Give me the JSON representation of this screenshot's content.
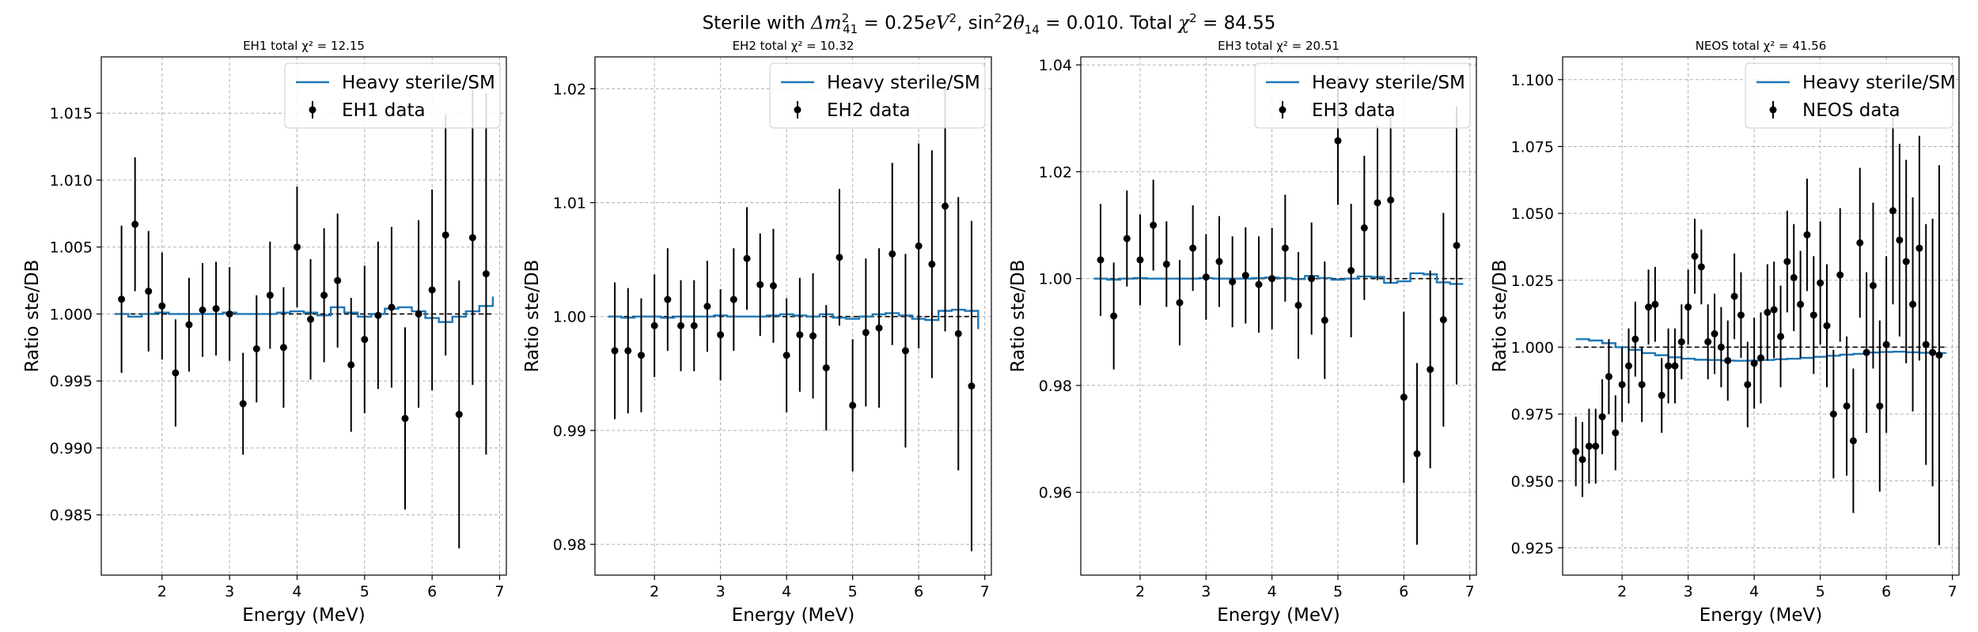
{
  "figure": {
    "suptitle": "Sterile with Δm²₄₁ = 0.25eV², sin²2θ₁₄ = 0.010. Total χ² = 84.55"
  },
  "colors": {
    "model": "#1f77b4",
    "data": "#000000",
    "reference": "#000000",
    "grid": "#b0b0b0"
  },
  "chart_data": [
    {
      "type": "scatter",
      "title": "EH1 total χ² = 12.15",
      "xlabel": "Energy (MeV)",
      "ylabel": "Ratio ste/DB",
      "xlim": [
        1.1,
        7.1
      ],
      "ylim": [
        0.9805,
        1.0192
      ],
      "xticks": [
        2,
        3,
        4,
        5,
        6,
        7
      ],
      "yticks": [
        0.985,
        0.99,
        0.995,
        1.0,
        1.005,
        1.01,
        1.015
      ],
      "ytick_labels": [
        "0.985",
        "0.990",
        "0.995",
        "1.000",
        "1.005",
        "1.010",
        "1.015"
      ],
      "grid": true,
      "reference_line": 1.0,
      "legend_position": "top-right",
      "series": [
        {
          "name": "Heavy sterile/SM",
          "kind": "step",
          "edges": [
            1.3,
            1.5,
            1.7,
            1.9,
            2.1,
            2.3,
            2.5,
            2.7,
            2.9,
            3.1,
            3.3,
            3.5,
            3.7,
            3.9,
            4.1,
            4.3,
            4.5,
            4.7,
            4.9,
            5.1,
            5.3,
            5.5,
            5.7,
            5.9,
            6.1,
            6.3,
            6.5,
            6.7,
            6.9
          ],
          "values": [
            1.0,
            0.9998,
            1.0,
            1.0001,
            1.0,
            1.0,
            1.0,
            1.0,
            1.0001,
            1.0,
            1.0,
            1.0,
            1.0001,
            1.0002,
            1.0001,
            0.9999,
            1.0005,
            1.0001,
            0.9998,
            1.0,
            1.0004,
            1.0005,
            1.0002,
            0.9997,
            0.9994,
            0.9998,
            1.0002,
            1.0006,
            1.0013
          ]
        },
        {
          "name": "EH1 data",
          "kind": "errorbar",
          "x": [
            1.4,
            1.6,
            1.8,
            2.0,
            2.2,
            2.4,
            2.6,
            2.8,
            3.0,
            3.2,
            3.4,
            3.6,
            3.8,
            4.0,
            4.2,
            4.4,
            4.6,
            4.8,
            5.0,
            5.2,
            5.4,
            5.6,
            5.8,
            6.0,
            6.2,
            6.4,
            6.6,
            6.8
          ],
          "y": [
            1.0011,
            1.0067,
            1.0017,
            1.0006,
            0.9956,
            0.9992,
            1.0003,
            1.0004,
            1.0,
            0.9933,
            0.9974,
            1.0014,
            0.9975,
            1.005,
            0.9996,
            1.0014,
            1.0025,
            0.9962,
            0.9981,
            0.9999,
            1.0005,
            0.9922,
            1.0,
            1.0018,
            1.0059,
            0.9925,
            1.0057,
            1.003
          ],
          "yerr": [
            0.0055,
            0.005,
            0.0045,
            0.004,
            0.004,
            0.0035,
            0.0035,
            0.0035,
            0.0035,
            0.0038,
            0.004,
            0.004,
            0.0045,
            0.0045,
            0.0045,
            0.005,
            0.005,
            0.005,
            0.0055,
            0.0055,
            0.006,
            0.0068,
            0.007,
            0.0075,
            0.009,
            0.01,
            0.011,
            0.0135
          ]
        }
      ]
    },
    {
      "type": "scatter",
      "title": "EH2 total χ² = 10.32",
      "xlabel": "Energy (MeV)",
      "ylabel": "Ratio ste/DB",
      "xlim": [
        1.1,
        7.1
      ],
      "ylim": [
        0.9773,
        1.0228
      ],
      "xticks": [
        2,
        3,
        4,
        5,
        6,
        7
      ],
      "yticks": [
        0.98,
        0.99,
        1.0,
        1.01,
        1.02
      ],
      "ytick_labels": [
        "0.98",
        "0.99",
        "1.00",
        "1.01",
        "1.02"
      ],
      "grid": true,
      "reference_line": 1.0,
      "legend_position": "top-right",
      "series": [
        {
          "name": "Heavy sterile/SM",
          "kind": "step",
          "edges": [
            1.3,
            1.5,
            1.7,
            1.9,
            2.1,
            2.3,
            2.5,
            2.7,
            2.9,
            3.1,
            3.3,
            3.5,
            3.7,
            3.9,
            4.1,
            4.3,
            4.5,
            4.7,
            4.9,
            5.1,
            5.3,
            5.5,
            5.7,
            5.9,
            6.1,
            6.3,
            6.5,
            6.7,
            6.9
          ],
          "values": [
            1.0,
            0.9999,
            1.0,
            1.0,
            0.9999,
            1.0,
            1.0,
            1.0,
            1.0001,
            1.0,
            1.0,
            1.0,
            1.0001,
            1.0002,
            1.0001,
            1.0,
            1.0002,
            0.9999,
            0.9998,
            1.0,
            1.0002,
            1.0003,
            1.0001,
            0.9998,
            0.9997,
            1.0005,
            1.0006,
            1.0005,
            0.9989
          ]
        },
        {
          "name": "EH2 data",
          "kind": "errorbar",
          "x": [
            1.4,
            1.6,
            1.8,
            2.0,
            2.2,
            2.4,
            2.6,
            2.8,
            3.0,
            3.2,
            3.4,
            3.6,
            3.8,
            4.0,
            4.2,
            4.4,
            4.6,
            4.8,
            5.0,
            5.2,
            5.4,
            5.6,
            5.8,
            6.0,
            6.2,
            6.4,
            6.6,
            6.8
          ],
          "y": [
            0.997,
            0.997,
            0.9966,
            0.9992,
            1.0015,
            0.9992,
            0.9992,
            1.0009,
            0.9984,
            1.0015,
            1.0051,
            1.0028,
            1.0027,
            0.9966,
            0.9984,
            0.9983,
            0.9955,
            1.0052,
            0.9922,
            0.9986,
            0.999,
            1.0055,
            0.997,
            1.0062,
            1.0046,
            1.0097,
            0.9985,
            0.9939
          ],
          "yerr": [
            0.006,
            0.0055,
            0.005,
            0.0045,
            0.0045,
            0.004,
            0.004,
            0.004,
            0.004,
            0.0045,
            0.0045,
            0.0045,
            0.005,
            0.005,
            0.005,
            0.0055,
            0.0055,
            0.006,
            0.0058,
            0.0065,
            0.007,
            0.008,
            0.0085,
            0.009,
            0.01,
            0.011,
            0.012,
            0.0145
          ]
        }
      ]
    },
    {
      "type": "scatter",
      "title": "EH3 total χ² = 20.51",
      "xlabel": "Energy (MeV)",
      "ylabel": "Ratio ste/DB",
      "xlim": [
        1.1,
        7.1
      ],
      "ylim": [
        0.9445,
        1.0415
      ],
      "xticks": [
        2,
        3,
        4,
        5,
        6,
        7
      ],
      "yticks": [
        0.96,
        0.98,
        1.0,
        1.02,
        1.04
      ],
      "ytick_labels": [
        "0.96",
        "0.98",
        "1.00",
        "1.02",
        "1.04"
      ],
      "grid": true,
      "reference_line": 1.0,
      "legend_position": "top-right",
      "series": [
        {
          "name": "Heavy sterile/SM",
          "kind": "step",
          "edges": [
            1.3,
            1.5,
            1.7,
            1.9,
            2.1,
            2.3,
            2.5,
            2.7,
            2.9,
            3.1,
            3.3,
            3.5,
            3.7,
            3.9,
            4.1,
            4.3,
            4.5,
            4.7,
            4.9,
            5.1,
            5.3,
            5.5,
            5.7,
            5.9,
            6.1,
            6.3,
            6.5,
            6.7,
            6.9
          ],
          "values": [
            1.0,
            0.9998,
            1.0,
            1.0001,
            1.0,
            1.0,
            1.0,
            1.0,
            1.0001,
            1.0,
            1.0,
            1.0,
            1.0001,
            1.0002,
            1.0001,
            0.9999,
            1.0005,
            1.0001,
            0.9998,
            1.0,
            1.0004,
            1.0003,
            0.9992,
            0.9995,
            1.001,
            1.0008,
            0.9993,
            0.999,
            0.999
          ]
        },
        {
          "name": "EH3 data",
          "kind": "errorbar",
          "x": [
            1.4,
            1.6,
            1.8,
            2.0,
            2.2,
            2.4,
            2.6,
            2.8,
            3.0,
            3.2,
            3.4,
            3.6,
            3.8,
            4.0,
            4.2,
            4.4,
            4.6,
            4.8,
            5.0,
            5.2,
            5.4,
            5.6,
            5.8,
            6.0,
            6.2,
            6.4,
            6.6,
            6.8
          ],
          "y": [
            1.0035,
            0.993,
            1.0075,
            1.0035,
            1.01,
            1.0027,
            0.9955,
            1.0057,
            1.0003,
            1.0032,
            0.9994,
            1.0006,
            0.9989,
            1.0,
            1.0057,
            0.995,
            1.0,
            0.9922,
            1.0258,
            1.0015,
            1.0095,
            1.0142,
            1.0147,
            0.9778,
            0.9672,
            0.983,
            0.9923,
            1.0062
          ],
          "yerr": [
            0.0105,
            0.01,
            0.009,
            0.0085,
            0.0085,
            0.008,
            0.008,
            0.008,
            0.008,
            0.0085,
            0.0085,
            0.009,
            0.009,
            0.0095,
            0.01,
            0.01,
            0.0105,
            0.011,
            0.012,
            0.0125,
            0.0135,
            0.0145,
            0.0155,
            0.016,
            0.017,
            0.0185,
            0.02,
            0.026
          ]
        }
      ]
    },
    {
      "type": "scatter",
      "title": "NEOS total χ² = 41.56",
      "xlabel": "Energy (MeV)",
      "ylabel": "Ratio ste/DB",
      "xlim": [
        1.1,
        7.1
      ],
      "ylim": [
        0.9148,
        1.1085
      ],
      "xticks": [
        2,
        3,
        4,
        5,
        6,
        7
      ],
      "yticks": [
        0.925,
        0.95,
        0.975,
        1.0,
        1.025,
        1.05,
        1.075,
        1.1
      ],
      "ytick_labels": [
        "0.925",
        "0.950",
        "0.975",
        "1.000",
        "1.025",
        "1.050",
        "1.075",
        "1.100"
      ],
      "grid": true,
      "reference_line": 1.0,
      "legend_position": "top-right",
      "series": [
        {
          "name": "Heavy sterile/SM",
          "kind": "step",
          "edges": [
            1.3,
            1.5,
            1.7,
            1.9,
            2.1,
            2.3,
            2.5,
            2.7,
            2.9,
            3.1,
            3.3,
            3.5,
            3.7,
            3.9,
            4.1,
            4.3,
            4.5,
            4.7,
            4.9,
            5.1,
            5.3,
            5.5,
            5.7,
            5.9,
            6.1,
            6.3,
            6.5,
            6.7,
            6.9
          ],
          "values": [
            1.003,
            1.0025,
            1.0015,
            1.0,
            0.999,
            0.9978,
            0.997,
            0.9962,
            0.9957,
            0.9953,
            0.9952,
            0.995,
            0.9949,
            0.995,
            0.9952,
            0.9955,
            0.9957,
            0.996,
            0.9964,
            0.9968,
            0.9972,
            0.9975,
            0.998,
            0.9982,
            0.9983,
            0.9981,
            0.9979,
            0.9978,
            0.9977
          ]
        },
        {
          "name": "NEOS data",
          "kind": "errorbar",
          "x": [
            1.3,
            1.4,
            1.5,
            1.6,
            1.7,
            1.8,
            1.9,
            2.0,
            2.1,
            2.2,
            2.3,
            2.4,
            2.5,
            2.6,
            2.7,
            2.8,
            2.9,
            3.0,
            3.1,
            3.2,
            3.3,
            3.4,
            3.5,
            3.6,
            3.7,
            3.8,
            3.9,
            4.0,
            4.1,
            4.2,
            4.3,
            4.4,
            4.5,
            4.6,
            4.7,
            4.8,
            4.9,
            5.0,
            5.1,
            5.2,
            5.3,
            5.4,
            5.5,
            5.6,
            5.7,
            5.8,
            5.9,
            6.0,
            6.1,
            6.2,
            6.3,
            6.4,
            6.5,
            6.6,
            6.7,
            6.8
          ],
          "y": [
            0.961,
            0.958,
            0.963,
            0.963,
            0.974,
            0.989,
            0.968,
            0.986,
            0.993,
            1.003,
            0.986,
            1.015,
            1.016,
            0.982,
            0.993,
            0.993,
            1.002,
            1.015,
            1.034,
            1.03,
            1.002,
            1.005,
            1.0,
            0.995,
            1.019,
            1.012,
            0.986,
            0.994,
            0.996,
            1.013,
            1.014,
            1.004,
            1.032,
            1.026,
            1.016,
            1.042,
            1.012,
            1.024,
            1.008,
            0.975,
            1.027,
            0.978,
            0.965,
            1.039,
            0.998,
            1.023,
            0.978,
            1.001,
            1.051,
            1.04,
            1.032,
            1.016,
            1.037,
            1.001,
            0.998,
            0.997
          ],
          "yerr": [
            0.013,
            0.014,
            0.014,
            0.014,
            0.014,
            0.014,
            0.014,
            0.014,
            0.014,
            0.014,
            0.014,
            0.014,
            0.014,
            0.014,
            0.014,
            0.014,
            0.014,
            0.014,
            0.014,
            0.014,
            0.014,
            0.015,
            0.015,
            0.015,
            0.016,
            0.016,
            0.016,
            0.017,
            0.017,
            0.018,
            0.018,
            0.019,
            0.019,
            0.02,
            0.02,
            0.021,
            0.022,
            0.023,
            0.023,
            0.024,
            0.025,
            0.026,
            0.027,
            0.028,
            0.03,
            0.031,
            0.032,
            0.033,
            0.035,
            0.036,
            0.038,
            0.04,
            0.042,
            0.045,
            0.05,
            0.071
          ]
        }
      ]
    }
  ]
}
